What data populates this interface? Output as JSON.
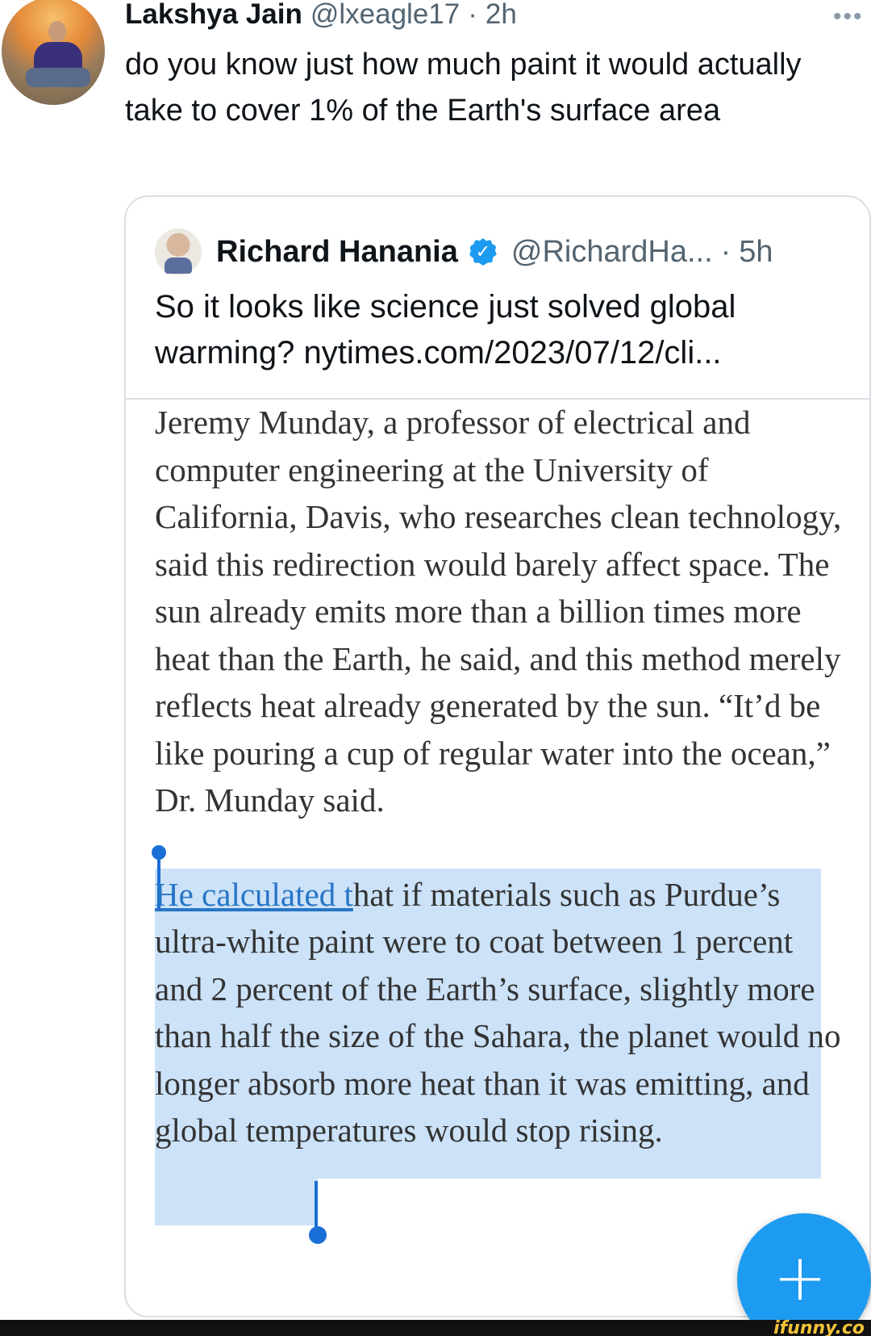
{
  "tweet": {
    "author_name": "Lakshya Jain",
    "author_handle": "@lxeagle17",
    "separator": "·",
    "time": "2h",
    "more_label": "•••",
    "text": "do you know just how much paint it would actually take to cover 1% of the Earth's surface area"
  },
  "quote": {
    "author_name": "Richard Hanania",
    "verified_glyph": "✓",
    "author_handle": "@RichardHa...",
    "separator": "·",
    "time": "5h",
    "text": "So it looks like science just solved global warming? nytimes.com/2023/07/12/cli...",
    "article": {
      "paragraph1": "Jeremy Munday, a professor of electrical and computer engineering at the University of California, Davis, who researches clean technology, said this redirection would barely affect space. The sun already emits more than a billion times more heat than the Earth, he said, and this method merely reflects heat already generated by the sun. “It’d be like pouring a cup of regular water into the ocean,” Dr. Munday said.",
      "paragraph2_link": "He calculated t",
      "paragraph2_rest": "hat if materials such as Purdue’s ultra-white paint were to coat between 1 percent and 2 percent of the Earth’s surface, slightly more than half the size of the Sahara, the planet would no longer absorb more heat than it was emitting, and global temperatures would stop rising."
    }
  },
  "fab": {
    "label": "+",
    "icon": "compose-plus-icon"
  },
  "watermark": "ifunny.co",
  "colors": {
    "accent": "#1d9bf0",
    "selection": "#cce2f8",
    "link": "#2775c6",
    "secondary_text": "#536471"
  }
}
